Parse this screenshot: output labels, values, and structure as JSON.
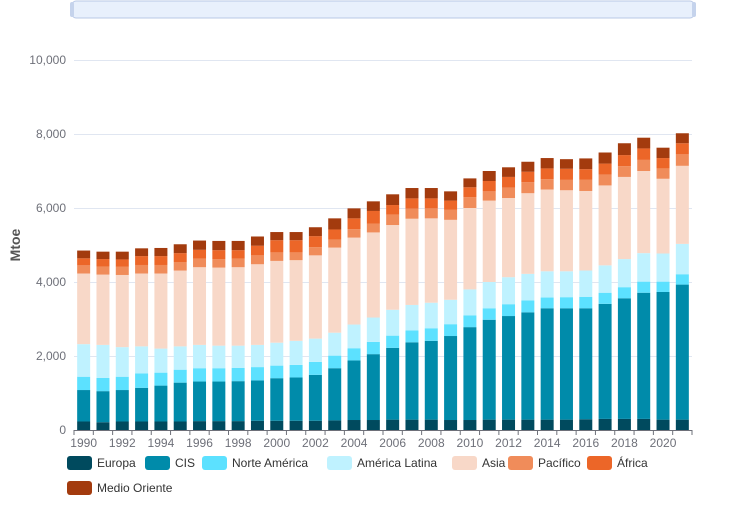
{
  "chart_data": {
    "type": "bar",
    "stacked": true,
    "ylabel": "Mtoe",
    "xlabel": "",
    "ylim": [
      0,
      10000
    ],
    "yticks": [
      "0",
      "2,000",
      "4,000",
      "6,000",
      "8,000",
      "10,000"
    ],
    "ytick_values": [
      0,
      2000,
      4000,
      6000,
      8000,
      10000
    ],
    "grid": true,
    "legend_position": "bottom",
    "has_zoom_slider": true,
    "categories": [
      "1990",
      "1991",
      "1992",
      "1993",
      "1994",
      "1995",
      "1996",
      "1997",
      "1998",
      "1999",
      "2000",
      "2001",
      "2002",
      "2003",
      "2004",
      "2005",
      "2006",
      "2007",
      "2008",
      "2009",
      "2010",
      "2011",
      "2012",
      "2013",
      "2014",
      "2015",
      "2016",
      "2017",
      "2018",
      "2019",
      "2020",
      "2021"
    ],
    "xtick_labels": [
      "1990",
      "1992",
      "1994",
      "1996",
      "1998",
      "2000",
      "2002",
      "2004",
      "2006",
      "2008",
      "2010",
      "2012",
      "2014",
      "2016",
      "2018",
      "2020"
    ],
    "series": [
      {
        "name": "Europa",
        "color": "#004a5e",
        "values": [
          230,
          210,
          230,
          230,
          230,
          230,
          240,
          240,
          240,
          250,
          250,
          250,
          250,
          260,
          270,
          270,
          280,
          280,
          280,
          270,
          270,
          280,
          280,
          280,
          280,
          280,
          290,
          300,
          300,
          300,
          280,
          280
        ]
      },
      {
        "name": "CIS",
        "color": "#008baa",
        "values": [
          850,
          840,
          850,
          910,
          970,
          1050,
          1070,
          1070,
          1080,
          1090,
          1150,
          1170,
          1240,
          1410,
          1610,
          1780,
          1940,
          2090,
          2130,
          2270,
          2510,
          2700,
          2800,
          2900,
          3010,
          3010,
          3000,
          3110,
          3260,
          3410,
          3450,
          3650
        ]
      },
      {
        "name": "Norte América",
        "color": "#5ce1ff",
        "values": [
          360,
          360,
          360,
          390,
          350,
          350,
          360,
          360,
          360,
          360,
          340,
          340,
          350,
          340,
          330,
          330,
          330,
          320,
          340,
          320,
          320,
          310,
          320,
          320,
          290,
          300,
          310,
          300,
          300,
          300,
          280,
          280
        ]
      },
      {
        "name": "América Latina",
        "color": "#bff2ff",
        "values": [
          880,
          890,
          800,
          730,
          650,
          630,
          630,
          610,
          600,
          600,
          620,
          650,
          630,
          620,
          640,
          660,
          700,
          690,
          690,
          660,
          700,
          710,
          730,
          720,
          710,
          700,
          710,
          740,
          760,
          770,
          760,
          820
        ]
      },
      {
        "name": "Asia",
        "color": "#f8d8c8",
        "values": [
          1910,
          1900,
          1950,
          1970,
          2030,
          2050,
          2100,
          2110,
          2120,
          2180,
          2210,
          2180,
          2250,
          2300,
          2350,
          2300,
          2290,
          2330,
          2280,
          2160,
          2200,
          2200,
          2140,
          2180,
          2210,
          2190,
          2150,
          2160,
          2220,
          2220,
          2020,
          2110
        ]
      },
      {
        "name": "Pacífico",
        "color": "#f08c5a",
        "values": [
          220,
          220,
          220,
          230,
          230,
          230,
          230,
          230,
          230,
          240,
          230,
          210,
          220,
          220,
          230,
          240,
          280,
          270,
          270,
          270,
          290,
          250,
          280,
          300,
          280,
          280,
          310,
          290,
          290,
          300,
          280,
          310
        ]
      },
      {
        "name": "África",
        "color": "#ec6628",
        "values": [
          190,
          200,
          200,
          240,
          240,
          240,
          240,
          240,
          230,
          260,
          330,
          330,
          300,
          270,
          290,
          340,
          260,
          280,
          270,
          250,
          270,
          280,
          290,
          280,
          290,
          300,
          280,
          300,
          300,
          310,
          280,
          300
        ]
      },
      {
        "name": "Medio Oriente",
        "color": "#a33b0e",
        "values": [
          210,
          200,
          210,
          210,
          220,
          240,
          250,
          250,
          250,
          250,
          220,
          220,
          240,
          300,
          270,
          260,
          290,
          280,
          280,
          250,
          240,
          270,
          260,
          270,
          280,
          260,
          290,
          300,
          320,
          290,
          280,
          270
        ]
      }
    ]
  }
}
